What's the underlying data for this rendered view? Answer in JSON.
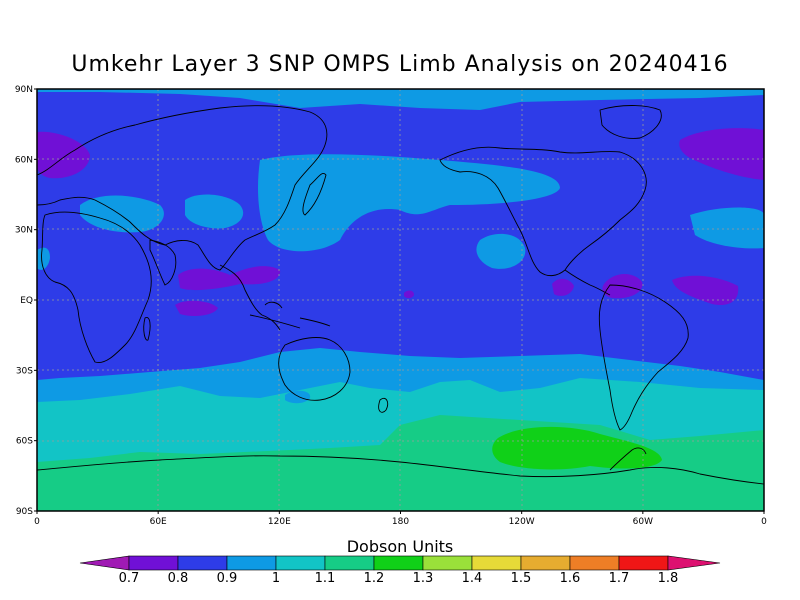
{
  "title": "Umkehr Layer 3 SNP OMPS Limb Analysis on 20240416",
  "units_title": "Dobson Units",
  "lat_ticks": [
    {
      "lat": 90,
      "label": "90N"
    },
    {
      "lat": 60,
      "label": "60N"
    },
    {
      "lat": 30,
      "label": "30N"
    },
    {
      "lat": 0,
      "label": "EQ"
    },
    {
      "lat": -30,
      "label": "30S"
    },
    {
      "lat": -60,
      "label": "60S"
    },
    {
      "lat": -90,
      "label": "90S"
    }
  ],
  "lon_ticks": [
    {
      "lon": 0,
      "label": "0"
    },
    {
      "lon": 60,
      "label": "60E"
    },
    {
      "lon": 120,
      "label": "120E"
    },
    {
      "lon": 180,
      "label": "180"
    },
    {
      "lon": 240,
      "label": "120W"
    },
    {
      "lon": 300,
      "label": "60W"
    },
    {
      "lon": 360,
      "label": "0"
    }
  ],
  "colorbar": {
    "labels": [
      "0.7",
      "0.8",
      "0.9",
      "1",
      "1.1",
      "1.2",
      "1.3",
      "1.4",
      "1.5",
      "1.6",
      "1.7",
      "1.8"
    ],
    "colors": [
      "#a01ab4",
      "#7010d6",
      "#2e3ce8",
      "#0e9ae4",
      "#12c4c6",
      "#16cc86",
      "#10d018",
      "#9ae03a",
      "#e6da38",
      "#e6ac30",
      "#ee7e26",
      "#f01616",
      "#dd1070"
    ]
  },
  "colors": {
    "band_08_09": "#2e3ce8",
    "band_07_08": "#7010d6",
    "band_09_10": "#0e9ae4",
    "band_10_11": "#12c4c6",
    "band_11_12": "#16cc86",
    "band_12_13": "#10d018"
  }
}
